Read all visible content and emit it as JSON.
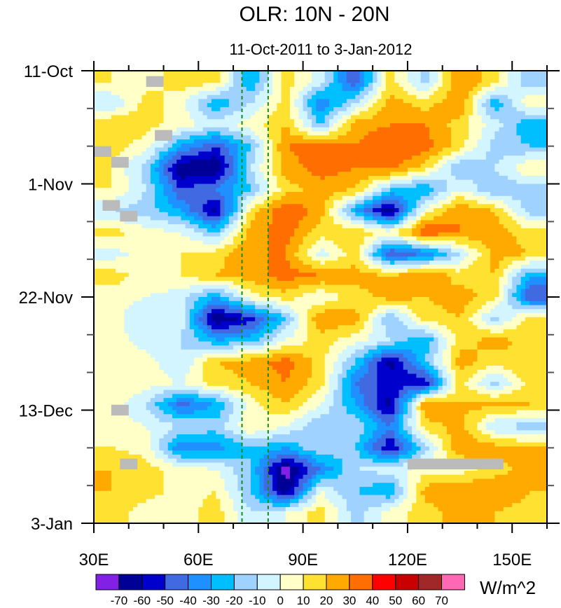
{
  "chart_data": {
    "type": "heatmap",
    "title": "OLR: 10N - 20N",
    "subtitle": "11-Oct-2011 to 3-Jan-2012",
    "units_label": "W/m^2",
    "x_axis": {
      "range": [
        30,
        160
      ],
      "ticks": [
        30,
        60,
        90,
        120,
        150
      ],
      "tick_labels": [
        "30E",
        "60E",
        "90E",
        "120E",
        "150E"
      ],
      "minor_step": 10
    },
    "y_axis": {
      "range_days": [
        0,
        84
      ],
      "ticks_days": [
        0,
        21,
        42,
        63,
        84
      ],
      "tick_labels": [
        "11-Oct",
        "1-Nov",
        "22-Nov",
        "13-Dec",
        "3-Jan"
      ],
      "minor_step_days": 7,
      "direction": "time increases downward"
    },
    "lon_centers": [
      35,
      45,
      55,
      65,
      75,
      85,
      95,
      105,
      115,
      125,
      135,
      145,
      155
    ],
    "day_centers": [
      2,
      6,
      10,
      14,
      18,
      22,
      26,
      30,
      34,
      38,
      42,
      46,
      50,
      54,
      58,
      62,
      66,
      70,
      74,
      78,
      82
    ],
    "values": [
      [
        10,
        5,
        15,
        15,
        -30,
        15,
        -5,
        -50,
        15,
        -15,
        30,
        15,
        -20
      ],
      [
        -10,
        15,
        5,
        -30,
        -10,
        15,
        -40,
        -10,
        25,
        15,
        30,
        -30,
        10
      ],
      [
        20,
        15,
        5,
        -5,
        5,
        20,
        -20,
        25,
        30,
        30,
        15,
        -5,
        -30
      ],
      [
        15,
        5,
        -30,
        -50,
        -20,
        30,
        35,
        30,
        40,
        35,
        15,
        -15,
        -20
      ],
      [
        10,
        -15,
        -70,
        -70,
        -10,
        25,
        35,
        30,
        35,
        15,
        -20,
        -10,
        10
      ],
      [
        10,
        -10,
        -50,
        -40,
        -20,
        15,
        25,
        20,
        -20,
        -30,
        0,
        -20,
        -15
      ],
      [
        -10,
        -15,
        -30,
        -65,
        15,
        40,
        25,
        -30,
        -70,
        5,
        30,
        20,
        -15
      ],
      [
        15,
        5,
        0,
        -20,
        25,
        35,
        15,
        20,
        5,
        40,
        30,
        25,
        15
      ],
      [
        -5,
        5,
        10,
        15,
        30,
        30,
        -5,
        15,
        -50,
        -40,
        -10,
        25,
        20
      ],
      [
        15,
        5,
        10,
        20,
        25,
        35,
        30,
        25,
        20,
        30,
        15,
        20,
        -30
      ],
      [
        5,
        0,
        -5,
        -30,
        5,
        15,
        0,
        15,
        25,
        20,
        25,
        15,
        -50
      ],
      [
        5,
        -10,
        -5,
        -70,
        -55,
        -20,
        30,
        25,
        -20,
        15,
        20,
        -15,
        15
      ],
      [
        5,
        -5,
        -10,
        -30,
        -25,
        0,
        15,
        5,
        -10,
        -30,
        15,
        25,
        15
      ],
      [
        5,
        5,
        -10,
        20,
        25,
        35,
        15,
        -20,
        -65,
        -20,
        25,
        15,
        20
      ],
      [
        10,
        5,
        0,
        15,
        20,
        30,
        15,
        -40,
        -55,
        -60,
        15,
        -15,
        15
      ],
      [
        5,
        -10,
        -45,
        -30,
        5,
        20,
        0,
        -30,
        -65,
        30,
        20,
        25,
        20
      ],
      [
        5,
        0,
        -10,
        -15,
        10,
        0,
        -20,
        -10,
        -40,
        15,
        25,
        -10,
        -15
      ],
      [
        10,
        5,
        -40,
        -35,
        -20,
        -30,
        -10,
        -20,
        -60,
        -15,
        30,
        25,
        20
      ],
      [
        20,
        15,
        5,
        0,
        -20,
        -75,
        -40,
        -10,
        -5,
        5,
        5,
        15,
        25
      ],
      [
        20,
        15,
        5,
        10,
        -20,
        -70,
        0,
        -20,
        -30,
        25,
        30,
        30,
        20
      ],
      [
        15,
        5,
        5,
        15,
        -10,
        0,
        15,
        -15,
        5,
        15,
        25,
        20,
        15
      ]
    ],
    "missing_boxes": [
      {
        "lon": [
          45,
          50
        ],
        "days": [
          1,
          3
        ]
      },
      {
        "lon": [
          47.5,
          52.5
        ],
        "days": [
          11,
          13
        ]
      },
      {
        "lon": [
          30,
          35
        ],
        "days": [
          14,
          16
        ]
      },
      {
        "lon": [
          35,
          40
        ],
        "days": [
          16,
          18
        ]
      },
      {
        "lon": [
          32.5,
          37.5
        ],
        "days": [
          24,
          26
        ]
      },
      {
        "lon": [
          37.5,
          42.5
        ],
        "days": [
          26,
          28
        ]
      },
      {
        "lon": [
          35,
          40
        ],
        "days": [
          62,
          64
        ]
      },
      {
        "lon": [
          37.5,
          42.5
        ],
        "days": [
          72,
          74
        ]
      },
      {
        "lon": [
          120,
          147.5
        ],
        "days": [
          72,
          74
        ]
      }
    ],
    "reference_lines_lon": [
      72.5,
      80
    ],
    "reference_line_color": "#1a8a1a",
    "missing_color": "#bbbbbb",
    "levels": [
      -70,
      -60,
      -50,
      -40,
      -30,
      -20,
      -10,
      0,
      10,
      20,
      30,
      40,
      50,
      60,
      70
    ],
    "level_labels": [
      "-70",
      "-60",
      "-50",
      "-40",
      "-30",
      "-20",
      "-10",
      "0",
      "10",
      "20",
      "30",
      "40",
      "50",
      "60",
      "70"
    ],
    "colors": [
      "#8221e6",
      "#000096",
      "#0000cd",
      "#4169e1",
      "#1e90ff",
      "#00bfff",
      "#a0d2ff",
      "#d2f5ff",
      "#ffffc8",
      "#ffe132",
      "#ffaa00",
      "#ff6e00",
      "#ff0000",
      "#c80000",
      "#a02828",
      "#ff69b4"
    ]
  }
}
